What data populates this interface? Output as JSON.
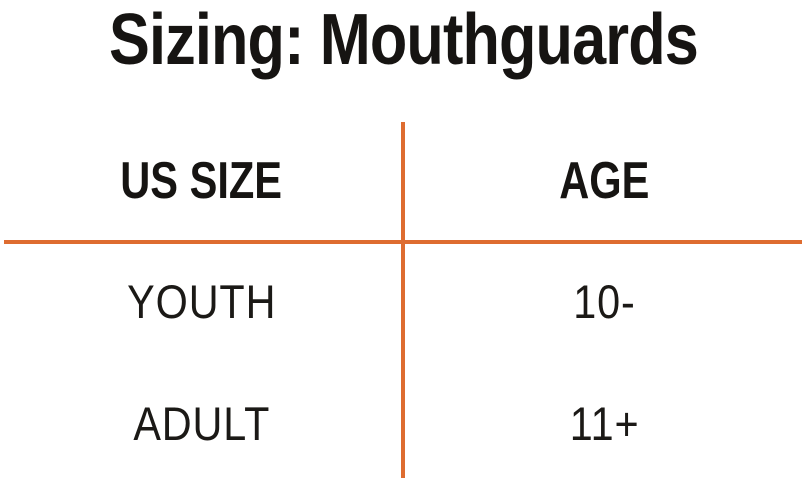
{
  "title": "Sizing: Mouthguards",
  "chart_data": {
    "type": "table",
    "title": "Sizing: Mouthguards",
    "columns": [
      "US SIZE",
      "AGE"
    ],
    "rows": [
      [
        "YOUTH",
        "10-"
      ],
      [
        "ADULT",
        "11+"
      ]
    ]
  },
  "colors": {
    "accent_line": "#DE6C30",
    "text": "#161412"
  }
}
